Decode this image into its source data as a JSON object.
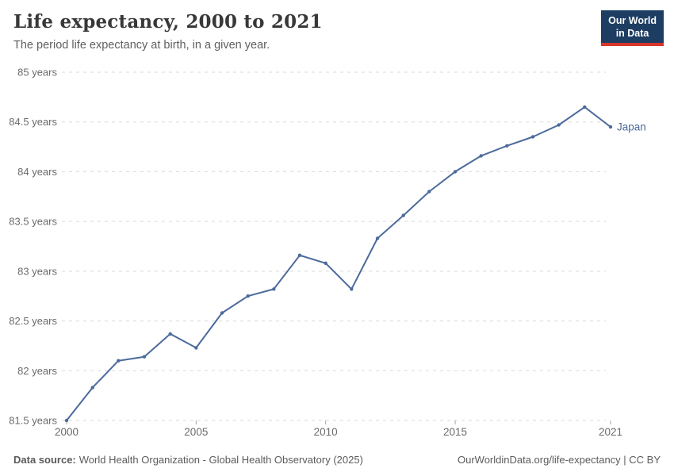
{
  "header": {
    "title": "Life expectancy, 2000 to 2021",
    "subtitle": "The period life expectancy at birth, in a given year.",
    "logo": {
      "line1": "Our World",
      "line2": "in Data",
      "bg_color": "#1d3d63",
      "accent_color": "#d8352b"
    }
  },
  "chart_data": {
    "type": "line",
    "title": "Life expectancy, 2000 to 2021",
    "xlabel": "",
    "ylabel": "",
    "xlim": [
      2000,
      2021
    ],
    "ylim": [
      81.5,
      85
    ],
    "grid": "horizontal-dashed",
    "legend_position": "end-of-line",
    "x_ticks": [
      2000,
      2005,
      2010,
      2015,
      2021
    ],
    "y_ticks": [
      81.5,
      82,
      82.5,
      83,
      83.5,
      84,
      84.5,
      85
    ],
    "y_tick_suffix": " years",
    "series": [
      {
        "name": "Japan",
        "color": "#4c6a9c",
        "x": [
          2000,
          2001,
          2002,
          2003,
          2004,
          2005,
          2006,
          2007,
          2008,
          2009,
          2010,
          2011,
          2012,
          2013,
          2014,
          2015,
          2016,
          2017,
          2018,
          2019,
          2020,
          2021
        ],
        "values": [
          81.5,
          81.83,
          82.1,
          82.14,
          82.37,
          82.23,
          82.58,
          82.75,
          82.82,
          83.16,
          83.08,
          82.82,
          83.33,
          83.56,
          83.8,
          84.0,
          84.16,
          84.26,
          84.35,
          84.47,
          84.65,
          84.45
        ]
      }
    ]
  },
  "footer": {
    "source_label": "Data source:",
    "source_text": "World Health Organization - Global Health Observatory (2025)",
    "right_text": "OurWorldinData.org/life-expectancy | CC BY"
  }
}
